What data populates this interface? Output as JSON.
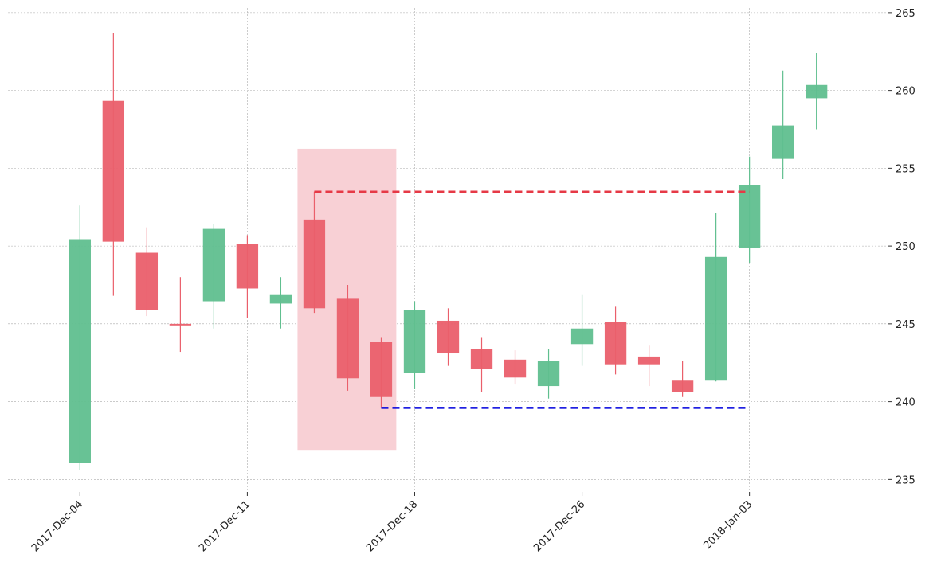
{
  "chart_data": {
    "type": "candlestick",
    "categories": [
      "2017-Dec-04",
      null,
      null,
      null,
      null,
      "2017-Dec-11",
      null,
      null,
      null,
      null,
      "2017-Dec-18",
      null,
      null,
      null,
      null,
      "2017-Dec-26",
      null,
      null,
      null,
      null,
      "2018-Jan-03",
      null,
      null
    ],
    "open": [
      236.08,
      259.33,
      249.57,
      245.0,
      246.45,
      250.13,
      246.3,
      251.7,
      246.66,
      243.85,
      241.85,
      245.2,
      243.4,
      242.7,
      241.0,
      243.7,
      245.1,
      242.9,
      241.4,
      241.4,
      249.9,
      255.6,
      259.5
    ],
    "high": [
      252.6,
      263.67,
      251.2,
      248.0,
      251.4,
      250.7,
      248.0,
      253.5,
      247.5,
      244.15,
      246.45,
      246.0,
      244.15,
      243.3,
      243.4,
      246.9,
      246.1,
      243.6,
      242.6,
      252.1,
      255.75,
      261.27,
      262.4
    ],
    "low": [
      235.6,
      246.8,
      245.5,
      243.2,
      244.7,
      245.4,
      244.7,
      245.7,
      240.7,
      239.65,
      240.8,
      242.3,
      240.6,
      241.1,
      240.2,
      242.3,
      241.75,
      241.0,
      240.3,
      241.3,
      248.9,
      254.3,
      257.5
    ],
    "close": [
      250.44,
      250.28,
      245.9,
      244.9,
      251.1,
      247.27,
      246.9,
      246.0,
      241.5,
      240.3,
      245.9,
      243.1,
      242.1,
      241.55,
      242.6,
      244.7,
      242.4,
      242.4,
      240.6,
      249.3,
      253.9,
      257.75,
      260.35
    ],
    "up_color": "#60bf8f",
    "down_color": "#ea5f6b",
    "xlim": [
      -2.15,
      24.15
    ],
    "ylim": [
      234.2,
      265.3
    ],
    "yticks": [
      235,
      240,
      245,
      250,
      255,
      260,
      265
    ],
    "grid": true,
    "highlight": {
      "x0": 6.5,
      "x1": 9.45,
      "y0": 236.9,
      "y1": 256.25,
      "color": "#f8d0d5"
    },
    "hlines": [
      {
        "y": 253.5,
        "x0": 7,
        "x1": 20,
        "color": "#e63946"
      },
      {
        "y": 239.6,
        "x0": 9,
        "x1": 20,
        "color": "#0000dd"
      }
    ]
  }
}
